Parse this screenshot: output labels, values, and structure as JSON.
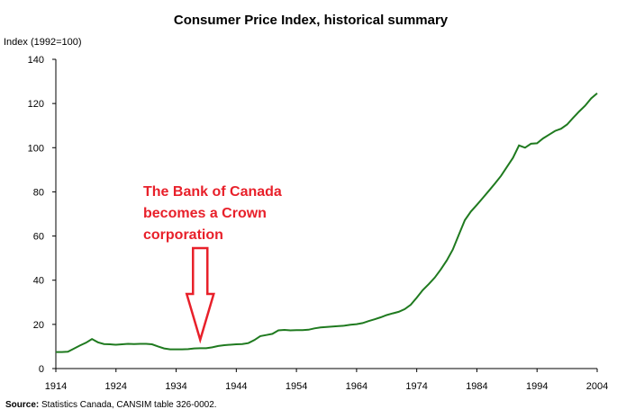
{
  "chart_data": {
    "type": "line",
    "title": "Consumer Price Index, historical summary",
    "ylabel": "Index (1992=100)",
    "xlabel": "",
    "xlim": [
      1914,
      2004
    ],
    "ylim": [
      0,
      140
    ],
    "xticks": [
      1914,
      1924,
      1934,
      1944,
      1954,
      1964,
      1974,
      1984,
      1994,
      2004
    ],
    "yticks": [
      0,
      20,
      40,
      60,
      80,
      100,
      120,
      140
    ],
    "grid": false,
    "colors": {
      "line": "#1f7a1f",
      "annotation": "#e8202a",
      "axis": "#000000"
    },
    "series": [
      {
        "x": [
          1914,
          1915,
          1916,
          1917,
          1918,
          1919,
          1920,
          1921,
          1922,
          1923,
          1924,
          1925,
          1926,
          1927,
          1928,
          1929,
          1930,
          1931,
          1932,
          1933,
          1934,
          1935,
          1936,
          1937,
          1938,
          1939,
          1940,
          1941,
          1942,
          1943,
          1944,
          1945,
          1946,
          1947,
          1948,
          1949,
          1950,
          1951,
          1952,
          1953,
          1954,
          1955,
          1956,
          1957,
          1958,
          1959,
          1960,
          1961,
          1962,
          1963,
          1964,
          1965,
          1966,
          1967,
          1968,
          1969,
          1970,
          1971,
          1972,
          1973,
          1974,
          1975,
          1976,
          1977,
          1978,
          1979,
          1980,
          1981,
          1982,
          1983,
          1984,
          1985,
          1986,
          1987,
          1988,
          1989,
          1990,
          1991,
          1992,
          1993,
          1994,
          1995,
          1996,
          1997,
          1998,
          1999,
          2000,
          2001,
          2002,
          2003,
          2004
        ],
        "values": [
          7.5,
          7.5,
          7.6,
          9.0,
          10.4,
          11.7,
          13.4,
          11.9,
          11.1,
          11.0,
          10.8,
          11.0,
          11.2,
          11.1,
          11.2,
          11.2,
          11.0,
          10.0,
          9.1,
          8.7,
          8.7,
          8.7,
          8.8,
          9.1,
          9.2,
          9.2,
          9.6,
          10.2,
          10.6,
          10.8,
          11.0,
          11.1,
          11.5,
          12.9,
          14.7,
          15.2,
          15.7,
          17.3,
          17.5,
          17.3,
          17.4,
          17.4,
          17.6,
          18.2,
          18.6,
          18.8,
          19.0,
          19.2,
          19.4,
          19.8,
          20.1,
          20.6,
          21.5,
          22.3,
          23.2,
          24.2,
          25.0,
          25.7,
          26.9,
          28.9,
          32.1,
          35.5,
          38.2,
          41.2,
          44.9,
          49.0,
          53.9,
          60.6,
          67.2,
          71.1,
          74.1,
          77.3,
          80.5,
          83.8,
          87.2,
          91.3,
          95.4,
          101.0,
          100.0,
          101.8,
          102.0,
          104.2,
          105.9,
          107.6,
          108.6,
          110.5,
          113.5,
          116.4,
          119.0,
          122.3,
          124.6
        ]
      }
    ],
    "annotations": [
      {
        "lines": [
          "The Bank of Canada",
          "becomes a Crown",
          "corporation"
        ],
        "points_to_x": 1938
      }
    ],
    "source": {
      "label": "Source:",
      "text": " Statistics Canada, CANSIM table 326-0002."
    }
  }
}
